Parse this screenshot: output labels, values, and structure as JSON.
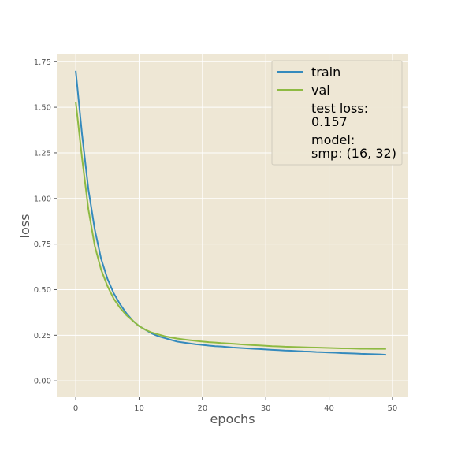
{
  "chart_data": {
    "type": "line",
    "title": "",
    "xlabel": "epochs",
    "ylabel": "loss",
    "xlim": [
      -3,
      52.5
    ],
    "ylim": [
      -0.09,
      1.79
    ],
    "x_ticks": [
      0,
      10,
      20,
      30,
      40,
      50
    ],
    "x_tick_labels": [
      "0",
      "10",
      "20",
      "30",
      "40",
      "50"
    ],
    "y_ticks": [
      0.0,
      0.25,
      0.5,
      0.75,
      1.0,
      1.25,
      1.5,
      1.75
    ],
    "y_tick_labels": [
      "0.00",
      "0.25",
      "0.50",
      "0.75",
      "1.00",
      "1.25",
      "1.50",
      "1.75"
    ],
    "grid": true,
    "legend_position": "top-right",
    "x": [
      0,
      1,
      2,
      3,
      4,
      5,
      6,
      7,
      8,
      9,
      10,
      11,
      12,
      13,
      14,
      15,
      16,
      17,
      18,
      19,
      20,
      21,
      22,
      23,
      24,
      25,
      26,
      27,
      28,
      29,
      30,
      31,
      32,
      33,
      34,
      35,
      36,
      37,
      38,
      39,
      40,
      41,
      42,
      43,
      44,
      45,
      46,
      47,
      48,
      49
    ],
    "series": [
      {
        "name": "train",
        "color": "#348ABD",
        "values": [
          1.7,
          1.35,
          1.05,
          0.83,
          0.67,
          0.56,
          0.48,
          0.42,
          0.37,
          0.33,
          0.3,
          0.28,
          0.26,
          0.245,
          0.235,
          0.225,
          0.215,
          0.21,
          0.205,
          0.2,
          0.197,
          0.193,
          0.19,
          0.188,
          0.185,
          0.182,
          0.18,
          0.178,
          0.176,
          0.174,
          0.172,
          0.17,
          0.168,
          0.166,
          0.165,
          0.163,
          0.161,
          0.16,
          0.158,
          0.157,
          0.155,
          0.154,
          0.152,
          0.151,
          0.15,
          0.148,
          0.147,
          0.146,
          0.145,
          0.143
        ]
      },
      {
        "name": "val",
        "color": "#8EBA42",
        "values": [
          1.53,
          1.22,
          0.94,
          0.74,
          0.61,
          0.52,
          0.45,
          0.4,
          0.36,
          0.33,
          0.3,
          0.28,
          0.265,
          0.255,
          0.245,
          0.238,
          0.232,
          0.227,
          0.223,
          0.219,
          0.215,
          0.212,
          0.21,
          0.207,
          0.205,
          0.203,
          0.2,
          0.198,
          0.196,
          0.194,
          0.192,
          0.19,
          0.189,
          0.187,
          0.186,
          0.185,
          0.184,
          0.183,
          0.182,
          0.181,
          0.18,
          0.179,
          0.178,
          0.178,
          0.177,
          0.176,
          0.176,
          0.175,
          0.175,
          0.175
        ]
      }
    ],
    "annotations": [
      {
        "line1": "test loss:",
        "line2": "0.157"
      },
      {
        "line1": "model:",
        "line2": "smp: (16, 32)"
      }
    ]
  }
}
